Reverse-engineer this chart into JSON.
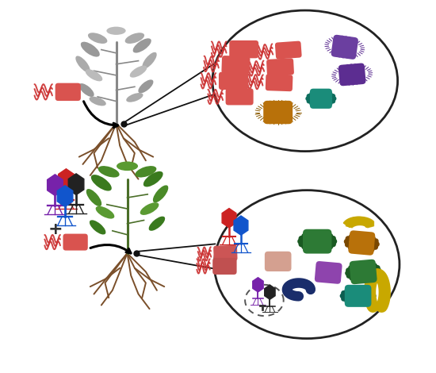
{
  "bg_color": "#ffffff",
  "red_bact": "#d9534f",
  "red_bact_light": "#e87878",
  "purple_bact": "#5c2d91",
  "purple_bact2": "#6b3fa0",
  "teal_bact": "#1a8c7a",
  "gold_bact": "#b8710a",
  "green_bact": "#2d7a35",
  "peach_bact": "#d4a090",
  "lavender_bact": "#8e44ad",
  "yellow_bact": "#c8a800",
  "navy_bact": "#1a2d6b",
  "phage_red": "#cc2222",
  "phage_purple": "#7722aa",
  "phage_black": "#222222",
  "phage_blue": "#1155cc",
  "stem_gray": "#888888",
  "stem_green": "#4a6e28",
  "root_brown": "#7a4f2a",
  "leaf_gray1": "#999999",
  "leaf_gray2": "#aaaaaa",
  "leaf_gray3": "#bbbbbb",
  "leaf_green1": "#3a7a1e",
  "leaf_green2": "#4a8a28",
  "leaf_green3": "#5a9a32",
  "arrow_color": "#111111",
  "ellipse_edge": "#222222",
  "flagella_color": "#cc3333"
}
